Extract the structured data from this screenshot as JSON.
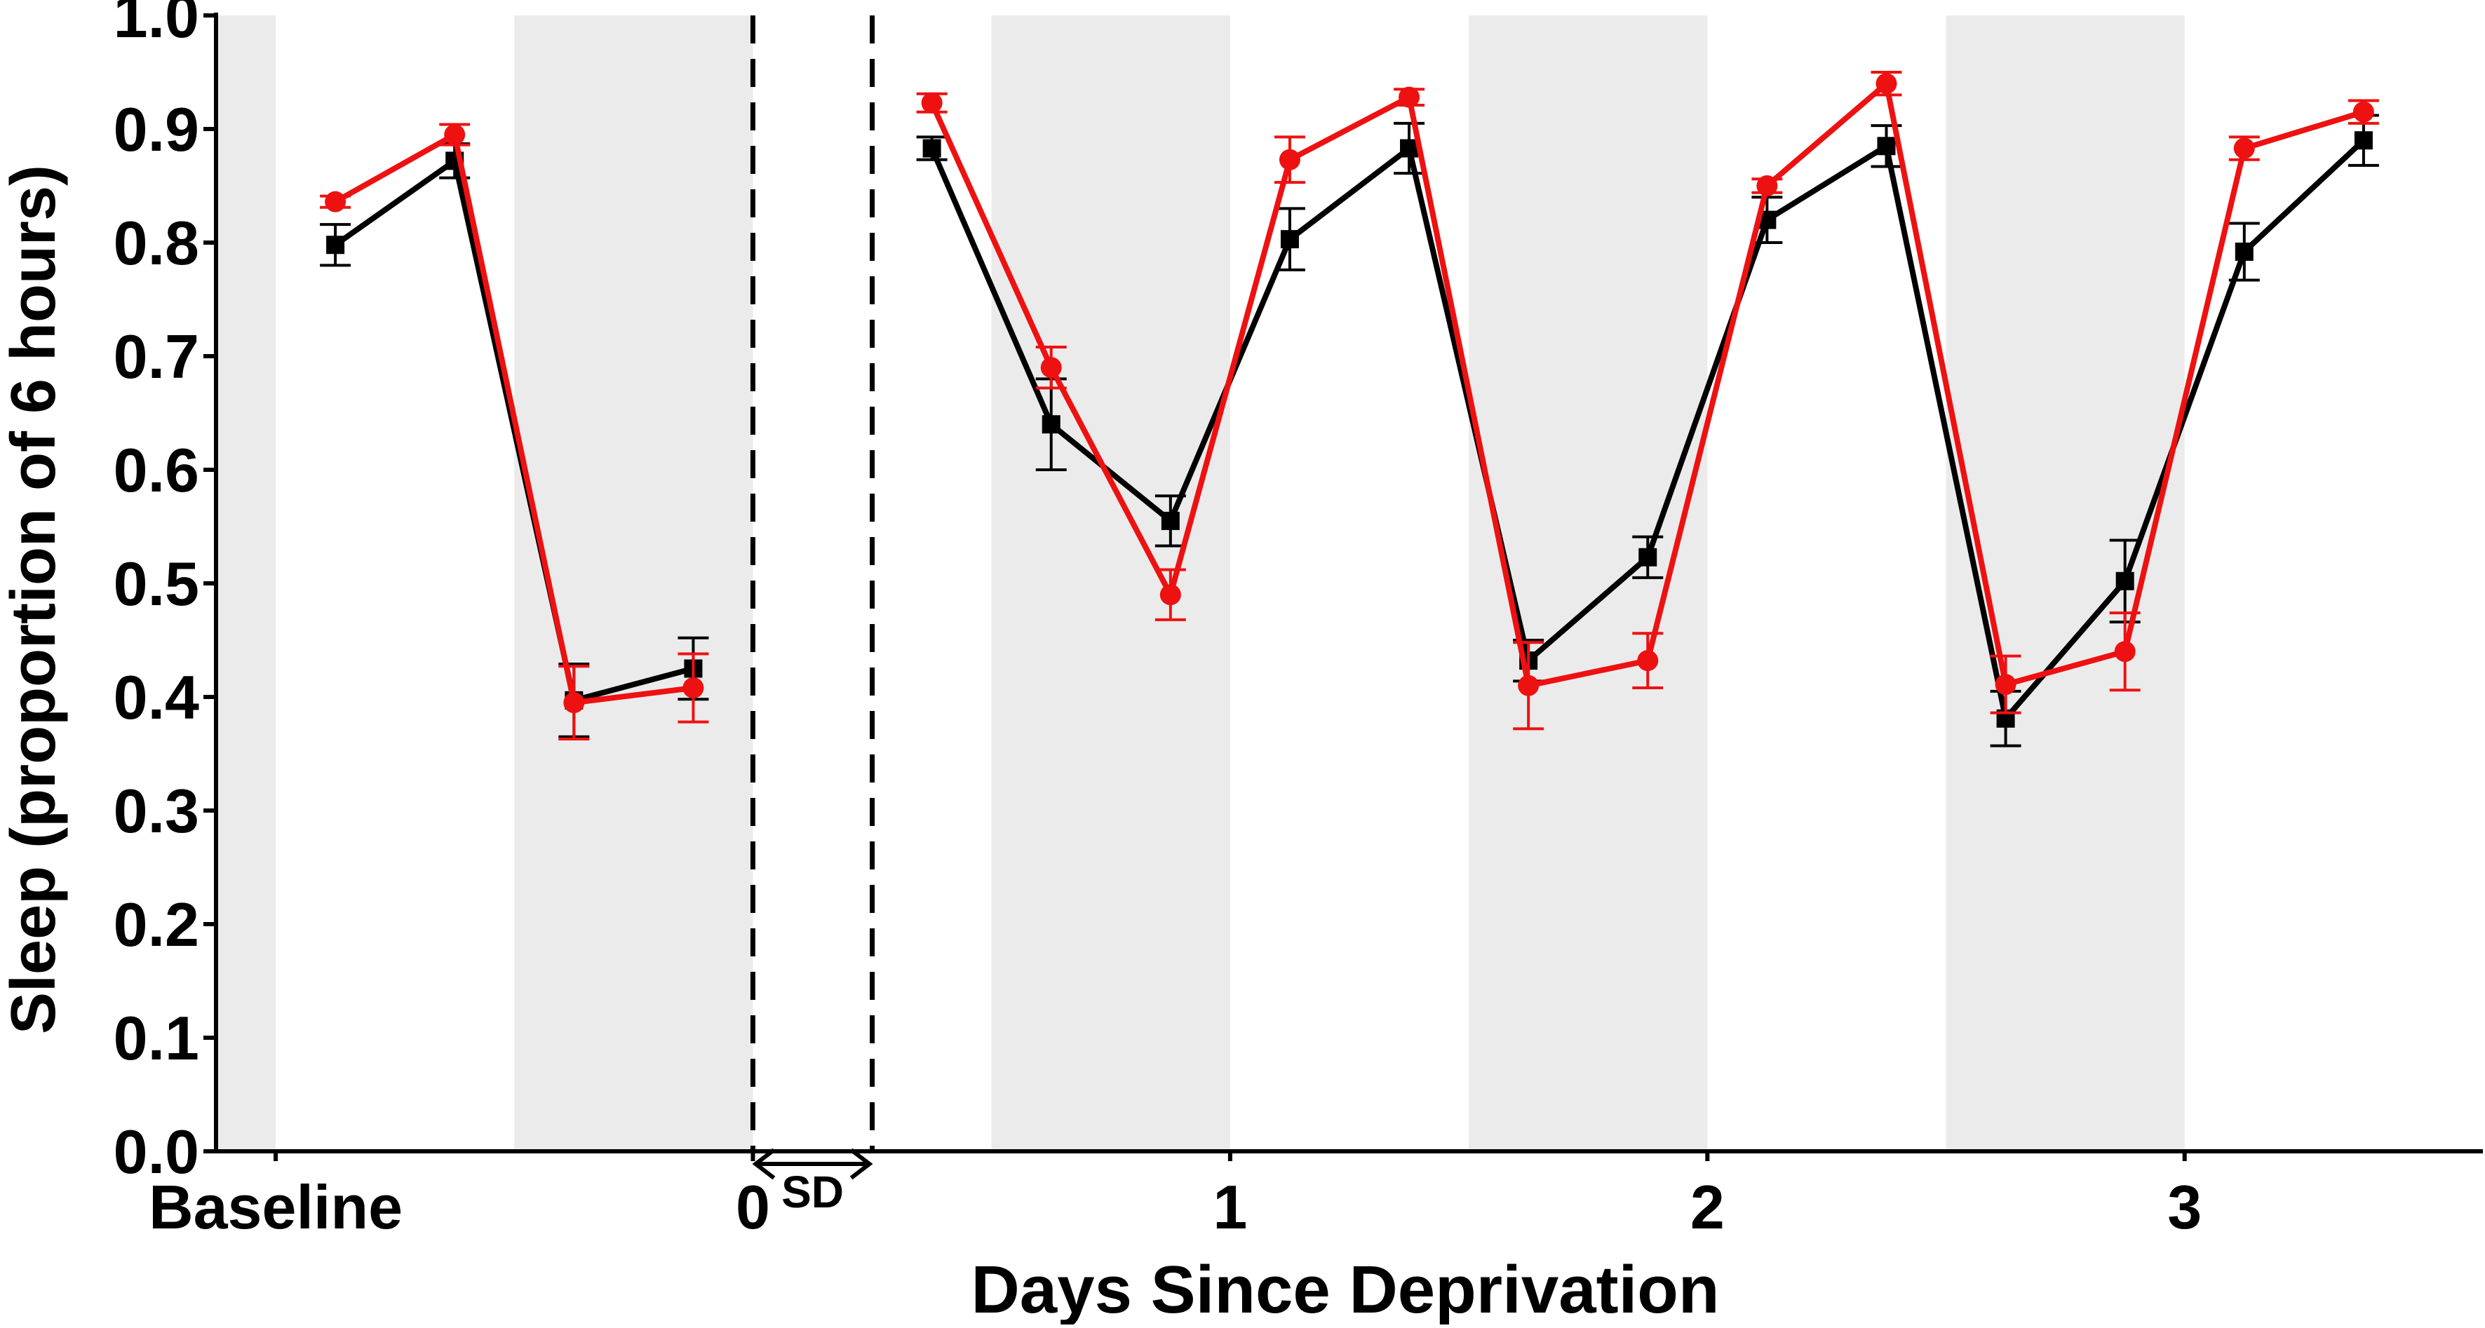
{
  "chart_data": {
    "type": "line",
    "xlabel": "Days Since Deprivation",
    "ylabel": "Sleep (proportion of 6 hours)",
    "ylim": [
      0.0,
      1.0
    ],
    "xlim": [
      -1.125,
      3.625
    ],
    "x_ticks": [
      {
        "x": -1,
        "label": "Baseline"
      },
      {
        "x": 0,
        "label": "0"
      },
      {
        "x": 1,
        "label": "1"
      },
      {
        "x": 2,
        "label": "2"
      },
      {
        "x": 3,
        "label": "3"
      }
    ],
    "y_ticks": [
      0.0,
      0.1,
      0.2,
      0.3,
      0.4,
      0.5,
      0.6,
      0.7,
      0.8,
      0.9,
      1.0
    ],
    "y_tick_labels": [
      "0.0",
      "0.1",
      "0.2",
      "0.3",
      "0.4",
      "0.5",
      "0.6",
      "0.7",
      "0.8",
      "0.9",
      "1.0"
    ],
    "shaded_periods": [
      [
        -1.125,
        -1.0
      ],
      [
        -0.5,
        0.0
      ],
      [
        0.5,
        1.0
      ],
      [
        1.5,
        2.0
      ],
      [
        2.5,
        3.0
      ]
    ],
    "shading_color": "#ebebeb",
    "deprivation_lines": [
      0.0,
      0.25
    ],
    "deprivation_label": "SD",
    "grid": false,
    "legend": "none",
    "series": [
      {
        "color": "#000000",
        "marker": "square",
        "segments": [
          {
            "x": [
              -0.875,
              -0.625,
              -0.375,
              -0.125
            ],
            "y": [
              0.798,
              0.872,
              0.397,
              0.425
            ],
            "err": [
              0.018,
              0.015,
              0.032,
              0.027
            ]
          },
          {
            "x": [
              0.375,
              0.625,
              0.875,
              1.125,
              1.375,
              1.625,
              1.875,
              2.125,
              2.375,
              2.625,
              2.875,
              3.125,
              3.375
            ],
            "y": [
              0.883,
              0.64,
              0.555,
              0.803,
              0.883,
              0.432,
              0.523,
              0.82,
              0.885,
              0.381,
              0.502,
              0.792,
              0.89
            ],
            "err": [
              0.01,
              0.04,
              0.022,
              0.027,
              0.022,
              0.018,
              0.018,
              0.02,
              0.018,
              0.024,
              0.036,
              0.025,
              0.022
            ]
          }
        ]
      },
      {
        "color": "#ee1111",
        "marker": "circle",
        "segments": [
          {
            "x": [
              -0.875,
              -0.625,
              -0.375,
              -0.125
            ],
            "y": [
              0.836,
              0.895,
              0.395,
              0.408
            ],
            "err": [
              0.005,
              0.009,
              0.032,
              0.03
            ]
          },
          {
            "x": [
              0.375,
              0.625,
              0.875,
              1.125,
              1.375,
              1.625,
              1.875,
              2.125,
              2.375,
              2.625,
              2.875,
              3.125,
              3.375
            ],
            "y": [
              0.923,
              0.69,
              0.49,
              0.873,
              0.928,
              0.41,
              0.432,
              0.85,
              0.94,
              0.411,
              0.44,
              0.883,
              0.915
            ],
            "err": [
              0.008,
              0.018,
              0.022,
              0.02,
              0.007,
              0.038,
              0.024,
              0.006,
              0.01,
              0.025,
              0.034,
              0.01,
              0.01
            ]
          }
        ]
      }
    ]
  }
}
